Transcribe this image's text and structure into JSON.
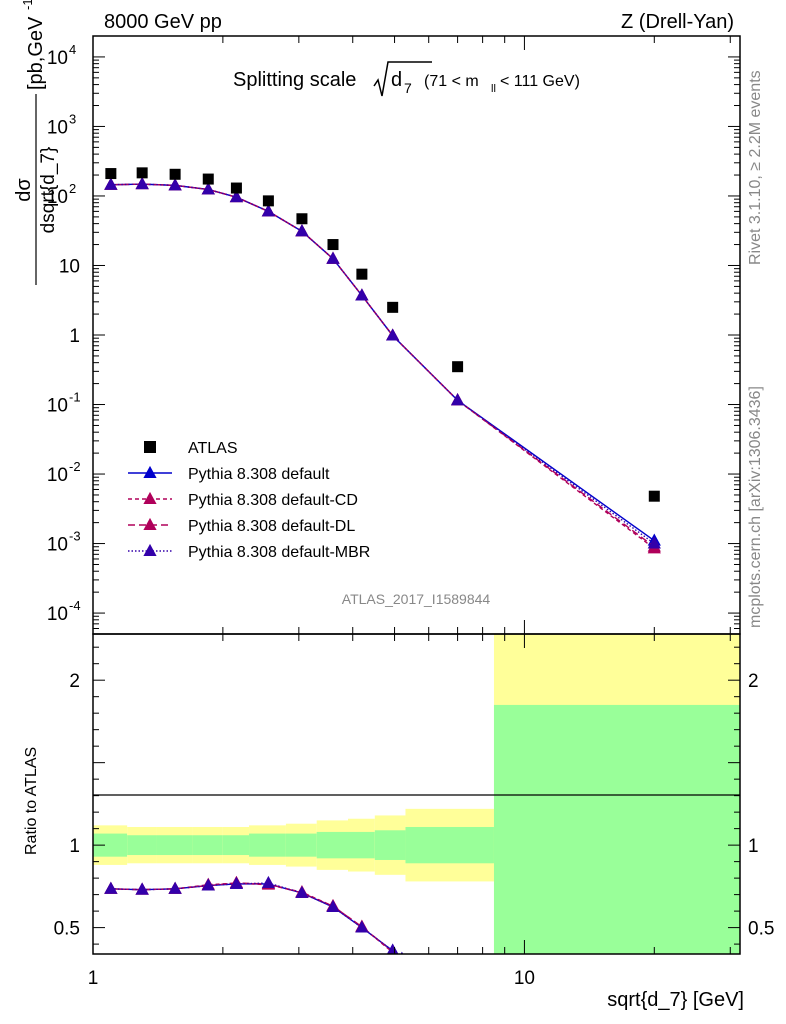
{
  "header": {
    "left": "8000 GeV pp",
    "right": "Z (Drell-Yan)"
  },
  "side_text": {
    "rivet": "Rivet 3.1.10, ≥ 2.2M events",
    "mcplots": "mcplots.cern.ch [arXiv:1306.3436]"
  },
  "watermark": "ATLAS_2017_I1589844",
  "colors": {
    "data": "#000000",
    "default": "#0000cc",
    "cd": "#b0005a",
    "dl": "#b0005a",
    "mbr": "#3300aa",
    "band_inner": "#99ff99",
    "band_outer": "#ffff99"
  },
  "chart_data": [
    {
      "type": "scatter",
      "title": "Splitting scale",
      "title_symbol": "d",
      "title_sub": "7",
      "title_cut": "(71 < m",
      "title_cut_sub": "ll",
      "title_cut_end": "< 111 GeV)",
      "ylabel": "dσ / dsqrt{d_7} [pb,GeV⁻¹]",
      "ylabel_num": "dσ",
      "ylabel_den": "dsqrt{d_7}",
      "ylabel_unit": "[pb,GeV",
      "ylabel_unit_sup": "-1",
      "ylabel_unit_end": "]",
      "yscale": "log",
      "xscale": "log",
      "xlim": [
        1,
        31.6
      ],
      "ylim": [
        5e-05,
        20000
      ],
      "yticks": [
        {
          "base": "10",
          "exp": "-4",
          "value": 0.0001
        },
        {
          "base": "10",
          "exp": "-3",
          "value": 0.001
        },
        {
          "base": "10",
          "exp": "-2",
          "value": 0.01
        },
        {
          "base": "10",
          "exp": "-1",
          "value": 0.1
        },
        {
          "base": "1",
          "exp": "",
          "value": 1
        },
        {
          "base": "10",
          "exp": "",
          "value": 10
        },
        {
          "base": "10",
          "exp": "2",
          "value": 100
        },
        {
          "base": "10",
          "exp": "3",
          "value": 1000
        },
        {
          "base": "10",
          "exp": "4",
          "value": 10000
        }
      ],
      "legend_position": "lower-left",
      "legend": [
        {
          "label": "ATLAS",
          "style": "data"
        },
        {
          "label": "Pythia 8.308 default",
          "style": "default"
        },
        {
          "label": "Pythia 8.308 default-CD",
          "style": "cd"
        },
        {
          "label": "Pythia 8.308 default-DL",
          "style": "dl"
        },
        {
          "label": "Pythia 8.308 default-MBR",
          "style": "mbr"
        }
      ],
      "series": [
        {
          "name": "ATLAS",
          "x": [
            1.1,
            1.3,
            1.55,
            1.85,
            2.15,
            2.55,
            3.05,
            3.6,
            4.2,
            4.95,
            7.0,
            20.0
          ],
          "y": [
            210,
            215,
            205,
            175,
            130,
            85,
            47,
            20,
            7.5,
            2.5,
            0.35,
            0.0048
          ]
        },
        {
          "name": "Pythia 8.308 default",
          "x": [
            1.1,
            1.3,
            1.55,
            1.85,
            2.15,
            2.55,
            3.05,
            3.6,
            4.2,
            4.95,
            7.0,
            20.0
          ],
          "y": [
            145,
            148,
            142,
            124,
            96,
            60,
            31,
            12.5,
            3.7,
            0.98,
            0.115,
            0.0011
          ]
        },
        {
          "name": "Pythia 8.308 default-CD",
          "x": [
            1.1,
            1.3,
            1.55,
            1.85,
            2.15,
            2.55,
            3.05,
            3.6,
            4.2,
            4.95,
            7.0,
            20.0
          ],
          "y": [
            145,
            148,
            142,
            124,
            96,
            60,
            31,
            12.5,
            3.7,
            0.98,
            0.115,
            0.00085
          ]
        },
        {
          "name": "Pythia 8.308 default-DL",
          "x": [
            1.1,
            1.3,
            1.55,
            1.85,
            2.15,
            2.55,
            3.05,
            3.6,
            4.2,
            4.95,
            7.0,
            20.0
          ],
          "y": [
            145,
            148,
            142,
            124,
            96,
            60,
            31,
            12.5,
            3.7,
            0.98,
            0.115,
            0.0009
          ]
        },
        {
          "name": "Pythia 8.308 default-MBR",
          "x": [
            1.1,
            1.3,
            1.55,
            1.85,
            2.15,
            2.55,
            3.05,
            3.6,
            4.2,
            4.95,
            7.0,
            20.0
          ],
          "y": [
            145,
            148,
            142,
            124,
            96,
            60,
            31,
            12.5,
            3.7,
            0.98,
            0.115,
            0.001
          ]
        }
      ]
    },
    {
      "type": "line",
      "ylabel": "Ratio to ATLAS",
      "xlabel": "sqrt{d_7} [GeV]",
      "xscale": "log",
      "xlim": [
        1,
        31.6
      ],
      "ylim": [
        0.34,
        2.28
      ],
      "yticks": [
        {
          "label": "0.5",
          "value": 0.5
        },
        {
          "label": "1",
          "value": 1
        },
        {
          "label": "2",
          "value": 2
        }
      ],
      "xticks": [
        {
          "label": "1",
          "value": 1
        },
        {
          "label": "10",
          "value": 10
        }
      ],
      "bands": {
        "edges": [
          1,
          1.2,
          1.4,
          1.7,
          2.0,
          2.3,
          2.8,
          3.3,
          3.9,
          4.5,
          5.3,
          8.5,
          31.6
        ],
        "inner": [
          [
            0.93,
            1.07
          ],
          [
            0.94,
            1.06
          ],
          [
            0.94,
            1.06
          ],
          [
            0.94,
            1.06
          ],
          [
            0.94,
            1.06
          ],
          [
            0.93,
            1.07
          ],
          [
            0.93,
            1.07
          ],
          [
            0.92,
            1.08
          ],
          [
            0.92,
            1.08
          ],
          [
            0.91,
            1.09
          ],
          [
            0.89,
            1.11
          ],
          [
            0.34,
            1.85
          ]
        ],
        "outer": [
          [
            0.88,
            1.12
          ],
          [
            0.89,
            1.11
          ],
          [
            0.89,
            1.11
          ],
          [
            0.89,
            1.11
          ],
          [
            0.89,
            1.11
          ],
          [
            0.88,
            1.12
          ],
          [
            0.87,
            1.13
          ],
          [
            0.85,
            1.15
          ],
          [
            0.84,
            1.16
          ],
          [
            0.82,
            1.18
          ],
          [
            0.78,
            1.22
          ],
          [
            0.34,
            2.28
          ]
        ]
      },
      "series": [
        {
          "name": "Pythia 8.308 default",
          "x": [
            1.1,
            1.3,
            1.55,
            1.85,
            2.15,
            2.55,
            3.05,
            3.6,
            4.2,
            4.95,
            5.2
          ],
          "y": [
            0.735,
            0.73,
            0.735,
            0.755,
            0.765,
            0.765,
            0.71,
            0.625,
            0.5,
            0.36,
            0.31
          ]
        },
        {
          "name": "Pythia 8.308 default-CD",
          "x": [
            1.1,
            1.3,
            1.55,
            1.85,
            2.15,
            2.55,
            3.05,
            3.6,
            4.2,
            4.95,
            5.2
          ],
          "y": [
            0.735,
            0.73,
            0.735,
            0.76,
            0.77,
            0.76,
            0.715,
            0.63,
            0.505,
            0.35,
            0.3
          ]
        },
        {
          "name": "Pythia 8.308 default-DL",
          "x": [
            1.1,
            1.3,
            1.55,
            1.85,
            2.15,
            2.55,
            3.05,
            3.6,
            4.2,
            4.95,
            5.2
          ],
          "y": [
            0.735,
            0.73,
            0.735,
            0.755,
            0.77,
            0.765,
            0.71,
            0.63,
            0.505,
            0.355,
            0.3
          ]
        },
        {
          "name": "Pythia 8.308 default-MBR",
          "x": [
            1.1,
            1.3,
            1.55,
            1.85,
            2.15,
            2.55,
            3.05,
            3.6,
            4.2,
            4.95,
            5.2
          ],
          "y": [
            0.735,
            0.73,
            0.735,
            0.755,
            0.765,
            0.77,
            0.71,
            0.625,
            0.5,
            0.36,
            0.31
          ]
        }
      ]
    }
  ]
}
